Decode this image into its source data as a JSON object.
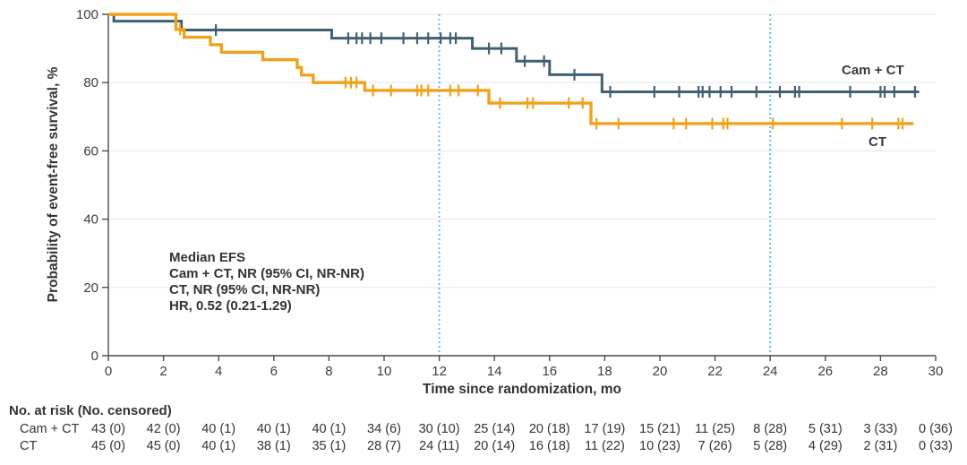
{
  "chart_data": {
    "type": "line",
    "variant": "kaplan_meier_step",
    "title": "",
    "xlabel": "Time since randomization, mo",
    "ylabel": "Probability of event-free survival, %",
    "xlim": [
      0,
      30
    ],
    "ylim": [
      0,
      100
    ],
    "x_ticks": [
      0,
      2,
      4,
      6,
      8,
      10,
      12,
      14,
      16,
      18,
      20,
      22,
      24,
      26,
      28,
      30
    ],
    "y_ticks": [
      0,
      20,
      40,
      60,
      80,
      100
    ],
    "grid": "horizontal",
    "legend_position": "curve-end-labels",
    "reference_lines_x": [
      12,
      24
    ],
    "colors": {
      "camct_curve": "#416072",
      "ct_curve": "#F0A21E",
      "reference_line": "#55C3EA",
      "grid_line": "#E7E7E7",
      "axis_line": "#4A4A4A",
      "text": "#3A3A3A"
    },
    "series": [
      {
        "name": "Cam + CT",
        "color": "#416072",
        "stroke_width": 3,
        "steps_time_pct": [
          [
            0,
            100
          ],
          [
            0.2,
            98.0
          ],
          [
            2.65,
            95.4
          ],
          [
            8.1,
            93.0
          ],
          [
            13.2,
            90.0
          ],
          [
            14.8,
            86.3
          ],
          [
            16.0,
            82.3
          ],
          [
            17.9,
            77.3
          ],
          [
            29.4,
            77.3
          ]
        ],
        "censor_marks": [
          [
            3.9,
            95.4
          ],
          [
            8.7,
            93
          ],
          [
            9.0,
            93
          ],
          [
            9.2,
            93
          ],
          [
            9.5,
            93
          ],
          [
            9.9,
            93
          ],
          [
            10.7,
            93
          ],
          [
            11.2,
            93
          ],
          [
            11.6,
            93
          ],
          [
            12.05,
            93
          ],
          [
            12.4,
            93
          ],
          [
            12.6,
            93
          ],
          [
            13.8,
            90
          ],
          [
            14.25,
            90
          ],
          [
            15.1,
            86.3
          ],
          [
            15.8,
            86.3
          ],
          [
            16.9,
            82.3
          ],
          [
            18.2,
            77.3
          ],
          [
            19.8,
            77.3
          ],
          [
            20.7,
            77.3
          ],
          [
            21.4,
            77.3
          ],
          [
            21.55,
            77.3
          ],
          [
            21.8,
            77.3
          ],
          [
            22.2,
            77.3
          ],
          [
            22.6,
            77.3
          ],
          [
            23.5,
            77.3
          ],
          [
            24.35,
            77.3
          ],
          [
            24.9,
            77.3
          ],
          [
            25.05,
            77.3
          ],
          [
            26.9,
            77.3
          ],
          [
            28.0,
            77.3
          ],
          [
            28.15,
            77.3
          ],
          [
            28.5,
            77.3
          ],
          [
            29.25,
            77.3
          ]
        ]
      },
      {
        "name": "CT",
        "color": "#F0A21E",
        "stroke_width": 3.4,
        "steps_time_pct": [
          [
            0,
            100
          ],
          [
            2.45,
            95.6
          ],
          [
            2.75,
            93.3
          ],
          [
            3.7,
            91.1
          ],
          [
            4.1,
            88.9
          ],
          [
            5.6,
            86.7
          ],
          [
            6.85,
            84.4
          ],
          [
            7.0,
            82.2
          ],
          [
            7.43,
            80.0
          ],
          [
            9.3,
            77.7
          ],
          [
            13.8,
            74.0
          ],
          [
            17.5,
            68.0
          ],
          [
            29.2,
            68.0
          ]
        ],
        "censor_marks": [
          [
            2.6,
            95.6
          ],
          [
            8.6,
            80
          ],
          [
            8.8,
            80
          ],
          [
            9.0,
            80
          ],
          [
            9.6,
            77.7
          ],
          [
            10.25,
            77.7
          ],
          [
            11.2,
            77.7
          ],
          [
            11.35,
            77.7
          ],
          [
            11.6,
            77.7
          ],
          [
            12.4,
            77.7
          ],
          [
            12.7,
            77.7
          ],
          [
            13.4,
            77.7
          ],
          [
            14.2,
            74
          ],
          [
            15.2,
            74
          ],
          [
            15.4,
            74
          ],
          [
            16.7,
            74
          ],
          [
            17.2,
            74
          ],
          [
            17.7,
            68
          ],
          [
            18.5,
            68
          ],
          [
            20.5,
            68
          ],
          [
            20.95,
            68
          ],
          [
            21.9,
            68
          ],
          [
            22.3,
            68
          ],
          [
            22.45,
            68
          ],
          [
            24.1,
            68
          ],
          [
            26.6,
            68
          ],
          [
            27.7,
            68
          ],
          [
            28.65,
            68
          ],
          [
            28.8,
            68
          ]
        ]
      }
    ],
    "annotation": {
      "lines": [
        "Median EFS",
        "Cam + CT, NR (95% CI, NR-NR)",
        "CT, NR (95% CI, NR-NR)",
        "HR, 0.52 (0.21-1.29)"
      ]
    },
    "risk_table": {
      "header": "No. at risk (No. censored)",
      "times": [
        0,
        2,
        4,
        6,
        8,
        10,
        12,
        14,
        16,
        18,
        20,
        22,
        24,
        26,
        28,
        30
      ],
      "rows": [
        {
          "label": "Cam + CT",
          "values": [
            "43 (0)",
            "42 (0)",
            "40 (1)",
            "40 (1)",
            "40 (1)",
            "34 (6)",
            "30 (10)",
            "25 (14)",
            "20 (18)",
            "17 (19)",
            "15 (21)",
            "11 (25)",
            "8 (28)",
            "5 (31)",
            "3 (33)",
            "0 (36)"
          ]
        },
        {
          "label": "CT",
          "values": [
            "45 (0)",
            "45 (0)",
            "40 (1)",
            "38 (1)",
            "35 (1)",
            "28 (7)",
            "24 (11)",
            "20 (14)",
            "16 (18)",
            "11 (22)",
            "10 (23)",
            "7 (26)",
            "5 (28)",
            "4 (29)",
            "2 (31)",
            "0 (33)"
          ]
        }
      ]
    }
  }
}
